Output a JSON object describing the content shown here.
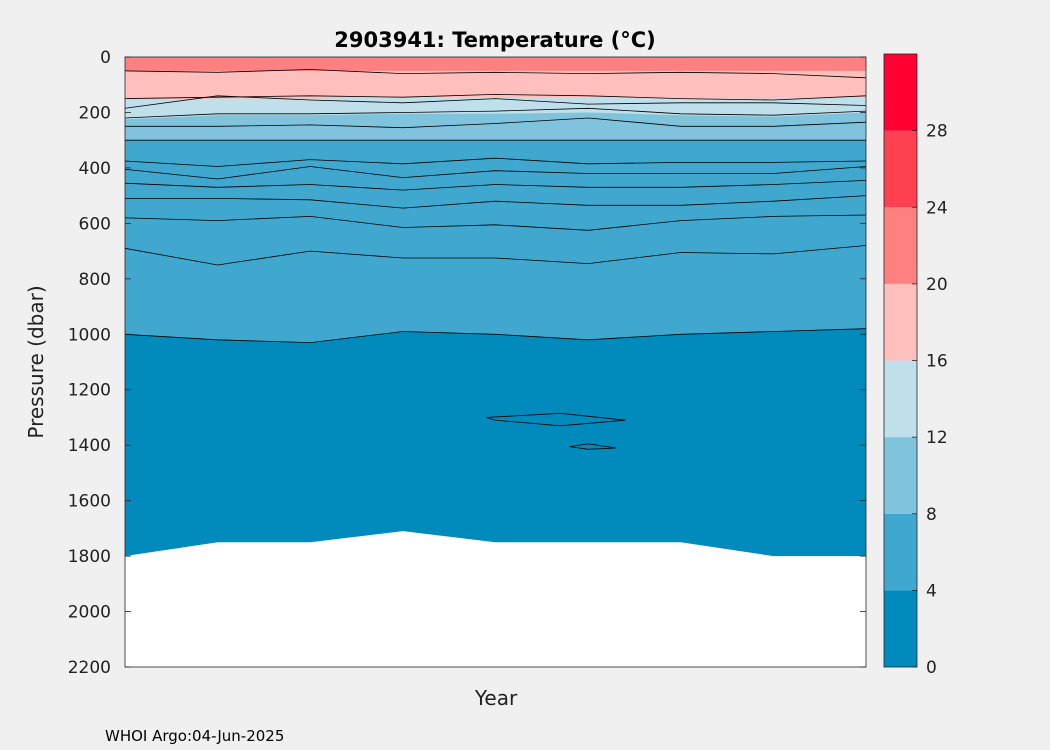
{
  "chart_data": {
    "type": "contour",
    "title": "2903941:  Temperature (°C)",
    "xlabel": "Year",
    "ylabel": "Pressure (dbar)",
    "ylim": [
      0,
      2200
    ],
    "y_reversed": true,
    "y_ticks": [
      "0",
      "200",
      "400",
      "600",
      "800",
      "1000",
      "1200",
      "1400",
      "1600",
      "1800",
      "2000",
      "2200"
    ],
    "x_profiles": 9,
    "colorbar": {
      "range": [
        0,
        32
      ],
      "tick_labels": [
        "0",
        "4",
        "8",
        "12",
        "16",
        "20",
        "24",
        "28"
      ],
      "bins": [
        {
          "min": 0,
          "max": 4,
          "color": "#008bbc"
        },
        {
          "min": 4,
          "max": 8,
          "color": "#40a7cf"
        },
        {
          "min": 8,
          "max": 12,
          "color": "#80c3dd"
        },
        {
          "min": 12,
          "max": 16,
          "color": "#bfe0eb"
        },
        {
          "min": 16,
          "max": 20,
          "color": "#ffbfbc"
        },
        {
          "min": 20,
          "max": 24,
          "color": "#ff8080"
        },
        {
          "min": 24,
          "max": 28,
          "color": "#ff4050"
        },
        {
          "min": 28,
          "max": 32,
          "color": "#ff0030"
        }
      ]
    },
    "fill_bands": [
      {
        "level": 0,
        "depth": [
          1800,
          1750,
          1750,
          1710,
          1750,
          1750,
          1750,
          1800,
          1800
        ]
      },
      {
        "level": 4,
        "depth": [
          1000,
          1020,
          1030,
          990,
          1000,
          1020,
          1000,
          990,
          980
        ]
      },
      {
        "level": 8,
        "depth": [
          300,
          300,
          300,
          300,
          300,
          300,
          300,
          300,
          300
        ]
      },
      {
        "level": 12,
        "depth": [
          225,
          210,
          210,
          205,
          205,
          200,
          210,
          215,
          200
        ]
      },
      {
        "level": 16,
        "depth": [
          155,
          150,
          150,
          145,
          145,
          145,
          150,
          150,
          145
        ]
      },
      {
        "level": 20,
        "depth": [
          50,
          50,
          50,
          50,
          50,
          50,
          50,
          50,
          50
        ]
      }
    ],
    "contour_lines": [
      {
        "depth": [
          50,
          55,
          45,
          60,
          55,
          60,
          55,
          60,
          75
        ]
      },
      {
        "depth": [
          150,
          145,
          140,
          145,
          135,
          140,
          150,
          155,
          140
        ]
      },
      {
        "depth": [
          185,
          140,
          155,
          165,
          150,
          170,
          165,
          165,
          175
        ]
      },
      {
        "depth": [
          220,
          205,
          205,
          200,
          195,
          185,
          205,
          210,
          195
        ]
      },
      {
        "depth": [
          250,
          250,
          245,
          255,
          240,
          220,
          250,
          250,
          235
        ]
      },
      {
        "depth": [
          300,
          300,
          300,
          300,
          300,
          300,
          300,
          300,
          300
        ]
      },
      {
        "depth": [
          375,
          395,
          370,
          385,
          365,
          385,
          380,
          380,
          375
        ]
      },
      {
        "depth": [
          405,
          440,
          395,
          435,
          410,
          420,
          420,
          420,
          395
        ]
      },
      {
        "depth": [
          455,
          470,
          460,
          480,
          460,
          470,
          470,
          460,
          445
        ]
      },
      {
        "depth": [
          510,
          510,
          515,
          545,
          520,
          535,
          535,
          520,
          500
        ]
      },
      {
        "depth": [
          580,
          590,
          575,
          615,
          605,
          625,
          590,
          575,
          570
        ]
      },
      {
        "depth": [
          690,
          750,
          700,
          725,
          725,
          745,
          705,
          710,
          680
        ]
      },
      {
        "depth": [
          1000,
          1020,
          1030,
          990,
          1000,
          1020,
          1000,
          990,
          980
        ]
      }
    ],
    "closed_contours": [
      {
        "points": [
          [
            3.9,
            1300
          ],
          [
            4.7,
            1285
          ],
          [
            5.4,
            1310
          ],
          [
            4.7,
            1330
          ],
          [
            4.0,
            1310
          ]
        ]
      },
      {
        "points": [
          [
            4.8,
            1405
          ],
          [
            5.0,
            1395
          ],
          [
            5.3,
            1410
          ],
          [
            5.0,
            1415
          ]
        ]
      }
    ]
  },
  "footer": {
    "credit": "WHOI Argo:04-Jun-2025"
  }
}
